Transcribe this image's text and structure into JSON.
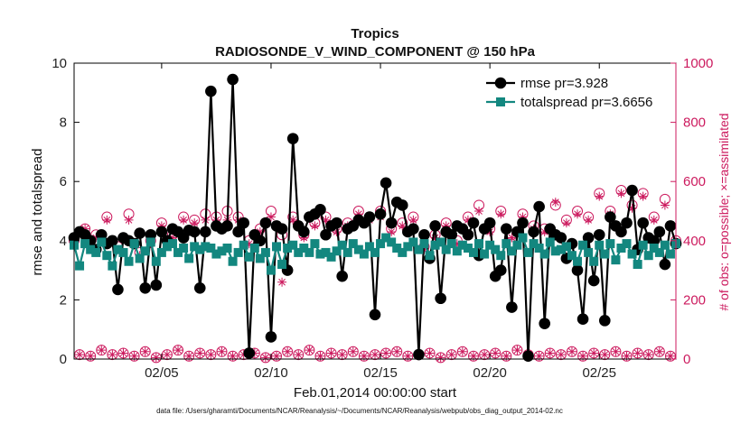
{
  "chart_data": {
    "type": "line",
    "title": "Tropics",
    "subtitle": "RADIOSONDE_V_WIND_COMPONENT @ 150 hPa",
    "xlabel": "Feb.01,2014 00:00:00 start",
    "ylabel": "rmse and totalspread",
    "ylabel_right": "# of obs: o=possible; ×=assimilated",
    "xlim": [
      1,
      28.5
    ],
    "ylim": [
      0,
      10
    ],
    "ylim_right": [
      0,
      1000
    ],
    "xticks": [
      {
        "value": 5,
        "label": "02/05"
      },
      {
        "value": 10,
        "label": "02/10"
      },
      {
        "value": 15,
        "label": "02/15"
      },
      {
        "value": 20,
        "label": "02/20"
      },
      {
        "value": 25,
        "label": "02/25"
      }
    ],
    "yticks": [
      0,
      2,
      4,
      6,
      8,
      10
    ],
    "yticks_right": [
      0,
      200,
      400,
      600,
      800,
      1000
    ],
    "legend_position": "top-right",
    "series": [
      {
        "name": "rmse pr=3.928",
        "color": "#000000",
        "marker": "circle",
        "x": [
          1.0,
          1.25,
          1.5,
          1.75,
          2.0,
          2.25,
          2.5,
          2.75,
          3.0,
          3.25,
          3.5,
          3.75,
          4.0,
          4.25,
          4.5,
          4.75,
          5.0,
          5.25,
          5.5,
          5.75,
          6.0,
          6.25,
          6.5,
          6.75,
          7.0,
          7.25,
          7.5,
          7.75,
          8.0,
          8.25,
          8.5,
          8.75,
          9.0,
          9.25,
          9.5,
          9.75,
          10.0,
          10.25,
          10.5,
          10.75,
          11.0,
          11.25,
          11.5,
          11.75,
          12.0,
          12.25,
          12.5,
          12.75,
          13.0,
          13.25,
          13.5,
          13.75,
          14.0,
          14.25,
          14.5,
          14.75,
          15.0,
          15.25,
          15.5,
          15.75,
          16.0,
          16.25,
          16.5,
          16.75,
          17.0,
          17.25,
          17.5,
          17.75,
          18.0,
          18.25,
          18.5,
          18.75,
          19.0,
          19.25,
          19.5,
          19.75,
          20.0,
          20.25,
          20.5,
          20.75,
          21.0,
          21.25,
          21.5,
          21.75,
          22.0,
          22.25,
          22.5,
          22.75,
          23.0,
          23.25,
          23.5,
          23.75,
          24.0,
          24.25,
          24.5,
          24.75,
          25.0,
          25.25,
          25.5,
          25.75,
          26.0,
          26.25,
          26.5,
          26.75,
          27.0,
          27.25,
          27.5,
          27.75,
          28.0,
          28.25,
          28.5
        ],
        "values": [
          4.1,
          4.3,
          4.2,
          4.0,
          3.7,
          4.2,
          3.9,
          4.0,
          2.35,
          4.1,
          4.0,
          3.9,
          4.25,
          2.4,
          4.2,
          2.5,
          4.3,
          4.0,
          4.4,
          4.3,
          4.1,
          4.35,
          4.3,
          2.4,
          4.3,
          9.05,
          4.5,
          4.4,
          4.5,
          9.45,
          4.3,
          4.6,
          0.2,
          4.2,
          4.0,
          4.6,
          0.75,
          4.5,
          4.4,
          3.0,
          7.45,
          4.5,
          4.3,
          4.8,
          4.9,
          5.05,
          4.2,
          4.5,
          4.6,
          2.8,
          4.4,
          4.5,
          4.7,
          4.6,
          4.8,
          1.5,
          4.9,
          5.95,
          4.6,
          5.3,
          5.2,
          4.3,
          4.4,
          0.15,
          4.2,
          3.4,
          4.5,
          2.05,
          4.3,
          4.2,
          4.5,
          4.4,
          4.2,
          4.6,
          3.5,
          4.4,
          4.6,
          2.8,
          3.0,
          4.4,
          1.75,
          4.3,
          4.6,
          0.1,
          4.3,
          5.15,
          1.2,
          4.4,
          4.2,
          4.1,
          3.4,
          3.9,
          3.0,
          1.35,
          4.1,
          2.65,
          4.2,
          1.3,
          4.8,
          4.5,
          4.3,
          4.6,
          5.7,
          3.7,
          4.6,
          4.1,
          4.0,
          4.3,
          3.2,
          4.5,
          3.9
        ]
      },
      {
        "name": "totalspread pr=3.6656",
        "color": "#13877f",
        "marker": "square",
        "x": [
          1.0,
          1.25,
          1.5,
          1.75,
          2.0,
          2.25,
          2.5,
          2.75,
          3.0,
          3.25,
          3.5,
          3.75,
          4.0,
          4.25,
          4.5,
          4.75,
          5.0,
          5.25,
          5.5,
          5.75,
          6.0,
          6.25,
          6.5,
          6.75,
          7.0,
          7.25,
          7.5,
          7.75,
          8.0,
          8.25,
          8.5,
          8.75,
          9.0,
          9.25,
          9.5,
          9.75,
          10.0,
          10.25,
          10.5,
          10.75,
          11.0,
          11.25,
          11.5,
          11.75,
          12.0,
          12.25,
          12.5,
          12.75,
          13.0,
          13.25,
          13.5,
          13.75,
          14.0,
          14.25,
          14.5,
          14.75,
          15.0,
          15.25,
          15.5,
          15.75,
          16.0,
          16.25,
          16.5,
          16.75,
          17.0,
          17.25,
          17.5,
          17.75,
          18.0,
          18.25,
          18.5,
          18.75,
          19.0,
          19.25,
          19.5,
          19.75,
          20.0,
          20.25,
          20.5,
          20.75,
          21.0,
          21.25,
          21.5,
          21.75,
          22.0,
          22.25,
          22.5,
          22.75,
          23.0,
          23.25,
          23.5,
          23.75,
          24.0,
          24.25,
          24.5,
          24.75,
          25.0,
          25.25,
          25.5,
          25.75,
          26.0,
          26.25,
          26.5,
          26.75,
          27.0,
          27.25,
          27.5,
          27.75,
          28.0,
          28.25,
          28.5
        ],
        "values": [
          3.85,
          3.15,
          3.9,
          3.7,
          3.6,
          3.95,
          3.5,
          3.15,
          3.7,
          3.6,
          3.3,
          3.9,
          3.4,
          3.65,
          3.95,
          3.3,
          3.6,
          3.8,
          3.9,
          3.6,
          3.75,
          3.4,
          3.8,
          3.7,
          3.8,
          3.75,
          3.55,
          3.65,
          3.75,
          3.3,
          3.6,
          3.85,
          3.45,
          3.75,
          3.4,
          3.6,
          3.0,
          3.8,
          3.2,
          3.75,
          3.85,
          3.6,
          3.75,
          3.6,
          3.9,
          3.55,
          3.6,
          3.45,
          3.65,
          3.85,
          3.6,
          3.9,
          3.7,
          3.55,
          3.8,
          3.6,
          3.9,
          4.1,
          3.95,
          3.75,
          3.6,
          3.8,
          3.95,
          3.7,
          3.9,
          3.5,
          3.85,
          3.95,
          3.7,
          3.9,
          3.65,
          3.85,
          3.75,
          3.6,
          3.9,
          3.55,
          3.85,
          3.7,
          3.5,
          3.9,
          3.65,
          3.85,
          4.1,
          3.6,
          3.9,
          3.75,
          3.55,
          3.95,
          3.65,
          3.7,
          3.8,
          3.5,
          3.3,
          3.85,
          3.6,
          3.3,
          3.85,
          3.55,
          3.9,
          3.35,
          3.75,
          3.9,
          3.55,
          3.2,
          3.85,
          3.5,
          3.75,
          3.6,
          3.85,
          3.55,
          3.9
        ]
      }
    ],
    "obs_possible": {
      "name": "possible (o)",
      "color": "#cc1a5e",
      "marker": "circle-open",
      "axis": "right",
      "x": [
        1.0,
        1.25,
        1.5,
        1.75,
        2.0,
        2.25,
        2.5,
        2.75,
        3.0,
        3.25,
        3.5,
        3.75,
        4.0,
        4.25,
        4.5,
        4.75,
        5.0,
        5.25,
        5.5,
        5.75,
        6.0,
        6.25,
        6.5,
        6.75,
        7.0,
        7.25,
        7.5,
        7.75,
        8.0,
        8.25,
        8.5,
        8.75,
        9.0,
        9.25,
        9.5,
        9.75,
        10.0,
        10.25,
        10.5,
        10.75,
        11.0,
        11.25,
        11.5,
        11.75,
        12.0,
        12.25,
        12.5,
        12.75,
        13.0,
        13.25,
        13.5,
        13.75,
        14.0,
        14.25,
        14.5,
        14.75,
        15.0,
        15.25,
        15.5,
        15.75,
        16.0,
        16.25,
        16.5,
        16.75,
        17.0,
        17.25,
        17.5,
        17.75,
        18.0,
        18.25,
        18.5,
        18.75,
        19.0,
        19.25,
        19.5,
        19.75,
        20.0,
        20.25,
        20.5,
        20.75,
        21.0,
        21.25,
        21.5,
        21.75,
        22.0,
        22.25,
        22.5,
        22.75,
        23.0,
        23.25,
        23.5,
        23.75,
        24.0,
        24.25,
        24.5,
        24.75,
        25.0,
        25.25,
        25.5,
        25.75,
        26.0,
        26.25,
        26.5,
        26.75,
        27.0,
        27.25,
        27.5,
        27.75,
        28.0,
        28.25,
        28.5
      ],
      "values": [
        400,
        15,
        440,
        10,
        420,
        30,
        480,
        15,
        380,
        20,
        490,
        10,
        360,
        25,
        400,
        5,
        460,
        15,
        420,
        30,
        480,
        10,
        470,
        20,
        490,
        15,
        480,
        25,
        500,
        10,
        480,
        15,
        400,
        20,
        440,
        5,
        500,
        10,
        420,
        25,
        480,
        15,
        420,
        30,
        460,
        10,
        480,
        20,
        440,
        15,
        460,
        25,
        500,
        10,
        480,
        15,
        500,
        20,
        440,
        25,
        460,
        10,
        480,
        15,
        380,
        20,
        420,
        5,
        460,
        15,
        400,
        25,
        480,
        10,
        520,
        15,
        440,
        20,
        500,
        10,
        420,
        30,
        490,
        15,
        450,
        10,
        440,
        20,
        520,
        15,
        470,
        25,
        500,
        10,
        480,
        20,
        560,
        15,
        500,
        25,
        570,
        10,
        520,
        20,
        560,
        15,
        480,
        25,
        540,
        10,
        400
      ]
    },
    "obs_assimilated": {
      "name": "assimilated (×)",
      "color": "#cc1a5e",
      "marker": "asterisk",
      "axis": "right",
      "x": [
        1.0,
        1.25,
        1.5,
        1.75,
        2.0,
        2.25,
        2.5,
        2.75,
        3.0,
        3.25,
        3.5,
        3.75,
        4.0,
        4.25,
        4.5,
        4.75,
        5.0,
        5.25,
        5.5,
        5.75,
        6.0,
        6.25,
        6.5,
        6.75,
        7.0,
        7.25,
        7.5,
        7.75,
        8.0,
        8.25,
        8.5,
        8.75,
        9.0,
        9.25,
        9.5,
        9.75,
        10.0,
        10.25,
        10.5,
        10.75,
        11.0,
        11.25,
        11.5,
        11.75,
        12.0,
        12.25,
        12.5,
        12.75,
        13.0,
        13.25,
        13.5,
        13.75,
        14.0,
        14.25,
        14.5,
        14.75,
        15.0,
        15.25,
        15.5,
        15.75,
        16.0,
        16.25,
        16.5,
        16.75,
        17.0,
        17.25,
        17.5,
        17.75,
        18.0,
        18.25,
        18.5,
        18.75,
        19.0,
        19.25,
        19.5,
        19.75,
        20.0,
        20.25,
        20.5,
        20.75,
        21.0,
        21.25,
        21.5,
        21.75,
        22.0,
        22.25,
        22.5,
        22.75,
        23.0,
        23.25,
        23.5,
        23.75,
        24.0,
        24.25,
        24.5,
        24.75,
        25.0,
        25.25,
        25.5,
        25.75,
        26.0,
        26.25,
        26.5,
        26.75,
        27.0,
        27.25,
        27.5,
        27.75,
        28.0,
        28.25,
        28.5
      ],
      "values": [
        390,
        15,
        440,
        10,
        410,
        30,
        470,
        15,
        370,
        20,
        470,
        10,
        350,
        25,
        390,
        5,
        450,
        15,
        410,
        30,
        470,
        10,
        460,
        20,
        470,
        15,
        470,
        25,
        470,
        10,
        470,
        15,
        390,
        20,
        430,
        5,
        480,
        10,
        260,
        25,
        470,
        15,
        410,
        30,
        450,
        10,
        470,
        20,
        430,
        15,
        450,
        25,
        490,
        10,
        470,
        15,
        480,
        20,
        430,
        25,
        450,
        10,
        470,
        15,
        370,
        20,
        410,
        5,
        450,
        15,
        390,
        25,
        470,
        10,
        500,
        15,
        430,
        20,
        490,
        10,
        410,
        30,
        480,
        15,
        440,
        10,
        430,
        20,
        530,
        15,
        460,
        25,
        490,
        10,
        470,
        20,
        550,
        15,
        490,
        25,
        560,
        10,
        510,
        20,
        550,
        15,
        470,
        25,
        520,
        10,
        390
      ]
    },
    "footer": "data file: /Users/gharamti/Documents/NCAR/Reanalysis/~/Documents/NCAR/Reanalysis/webpub/obs_diag_output_2014-02.nc"
  }
}
